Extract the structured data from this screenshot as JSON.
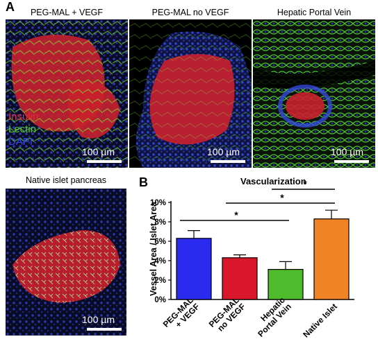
{
  "panel_a_letter": "A",
  "panel_b_letter": "B",
  "images": [
    {
      "title": "PEG-MAL + VEGF",
      "scale": "100 µm"
    },
    {
      "title": "PEG-MAL no VEGF",
      "scale": "100 µm"
    },
    {
      "title": "Hepatic Portal Vein",
      "scale": "100 µm"
    },
    {
      "title": "Native islet pancreas",
      "scale": "100 µm"
    }
  ],
  "stain_legend": [
    {
      "label": "Insulin",
      "color": "#e0303a"
    },
    {
      "label": "Lectin",
      "color": "#49c93a"
    },
    {
      "label": "DAPI",
      "color": "#3448d8"
    }
  ],
  "chart_data": {
    "type": "bar",
    "title": "Vascularization",
    "ylabel": "Vessel Area / Islet Area",
    "xlabel": "",
    "ylim": [
      0,
      10
    ],
    "yticks": [
      "0%",
      "2%",
      "4%",
      "6%",
      "8%",
      "10%"
    ],
    "categories": [
      "PEG-MAL\n+ VEGF",
      "PEG-MAL\nno VEGF",
      "Hepatic\nPortal Vein",
      "Native Islet"
    ],
    "values": [
      6.3,
      4.3,
      3.1,
      8.3
    ],
    "errors": [
      0.8,
      0.3,
      0.8,
      0.9
    ],
    "colors": [
      "#2b2bef",
      "#d8182a",
      "#4dbb2b",
      "#f08325"
    ],
    "significance": [
      {
        "from": 0,
        "to": 2,
        "label": "*"
      },
      {
        "from": 1,
        "to": 3,
        "label": "*"
      },
      {
        "from": 2,
        "to": 3,
        "label": "*"
      }
    ]
  }
}
